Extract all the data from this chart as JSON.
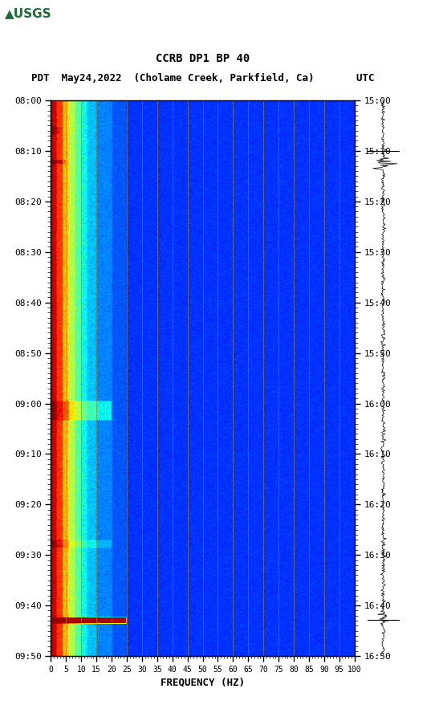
{
  "title_line1": "CCRB DP1 BP 40",
  "title_line2_pdt": "PDT",
  "title_line2_date": "May24,2022",
  "title_line2_loc": "(Cholame Creek, Parkfield, Ca)",
  "title_line2_utc": "UTC",
  "xlabel": "FREQUENCY (HZ)",
  "freq_ticks": [
    0,
    5,
    10,
    15,
    20,
    25,
    30,
    35,
    40,
    45,
    50,
    55,
    60,
    65,
    70,
    75,
    80,
    85,
    90,
    95,
    100
  ],
  "time_ticks_left": [
    "08:00",
    "08:10",
    "08:20",
    "08:30",
    "08:40",
    "08:50",
    "09:00",
    "09:10",
    "09:20",
    "09:30",
    "09:40",
    "09:50"
  ],
  "time_ticks_right": [
    "15:00",
    "15:10",
    "15:20",
    "15:30",
    "15:40",
    "15:50",
    "16:00",
    "16:10",
    "16:20",
    "16:30",
    "16:40",
    "16:50"
  ],
  "freq_min": 0,
  "freq_max": 100,
  "n_freq": 500,
  "n_time": 720,
  "bg_color": "#ffffff",
  "usgs_green": "#1a6e35",
  "vline_color": "#b8860b",
  "vline_alpha": 0.7,
  "vline_lw": 0.6,
  "seis_line_color": "#000000",
  "seis_line_lw": 0.5,
  "tick_label_fontsize": 8,
  "title1_fontsize": 10,
  "title2_fontsize": 9,
  "xlabel_fontsize": 9
}
